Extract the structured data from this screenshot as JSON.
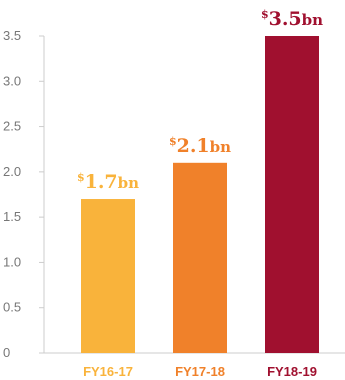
{
  "chart_data": {
    "type": "bar",
    "categories": [
      "FY16-17",
      "FY17-18",
      "FY18-19"
    ],
    "values": [
      1.7,
      2.1,
      3.5
    ],
    "value_labels": [
      {
        "prefix": "$",
        "number": "1.7",
        "suffix": "bn"
      },
      {
        "prefix": "$",
        "number": "2.1",
        "suffix": "bn"
      },
      {
        "prefix": "$",
        "number": "3.5",
        "suffix": "bn"
      }
    ],
    "bar_colors": [
      "#F9B33B",
      "#F0812A",
      "#A0102F"
    ],
    "ylim": [
      0,
      3.5
    ],
    "yticks": [
      "0",
      "0.5",
      "1.0",
      "1.5",
      "2.0",
      "2.5",
      "3.0",
      "3.5"
    ],
    "grid": false
  }
}
